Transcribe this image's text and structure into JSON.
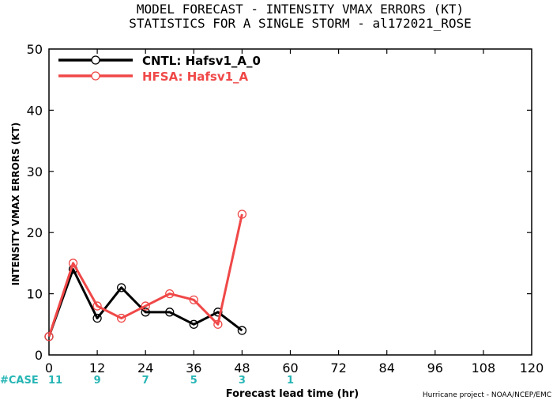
{
  "chart_data": {
    "type": "line",
    "title": "MODEL FORECAST - INTENSITY VMAX ERRORS (KT)",
    "subtitle": "STATISTICS FOR A SINGLE STORM - al172021_ROSE",
    "ylabel": "INTENSITY VMAX ERRORS (KT)",
    "xlabel": "Forecast lead time (hr)",
    "xlim": [
      0,
      120
    ],
    "ylim": [
      0,
      50
    ],
    "x_ticks": [
      "0",
      "12",
      "24",
      "36",
      "48",
      "60",
      "72",
      "84",
      "96",
      "108",
      "120"
    ],
    "y_ticks": [
      "0",
      "10",
      "20",
      "30",
      "40",
      "50"
    ],
    "legend_position": "top-left",
    "grid": false,
    "series": [
      {
        "name": "CNTL: Hafsv1_A_0",
        "color": "#000000",
        "x": [
          0,
          6,
          12,
          18,
          24,
          30,
          36,
          42,
          48
        ],
        "values": [
          3,
          14,
          6,
          11,
          7,
          7,
          5,
          7,
          4
        ]
      },
      {
        "name": "HFSA: Hafsv1_A",
        "color": "#f04848",
        "x": [
          0,
          6,
          12,
          18,
          24,
          30,
          36,
          42,
          48
        ],
        "values": [
          3,
          15,
          8,
          6,
          8,
          10,
          9,
          5,
          23
        ]
      }
    ],
    "case_label": "#CASE",
    "case_counts": [
      {
        "x": 0,
        "label": "11"
      },
      {
        "x": 12,
        "label": "9"
      },
      {
        "x": 24,
        "label": "7"
      },
      {
        "x": 36,
        "label": "5"
      },
      {
        "x": 48,
        "label": "3"
      },
      {
        "x": 60,
        "label": "1"
      }
    ],
    "case_color": "#26b5b5",
    "credit": "Hurricane project - NOAA/NCEP/EMC"
  }
}
